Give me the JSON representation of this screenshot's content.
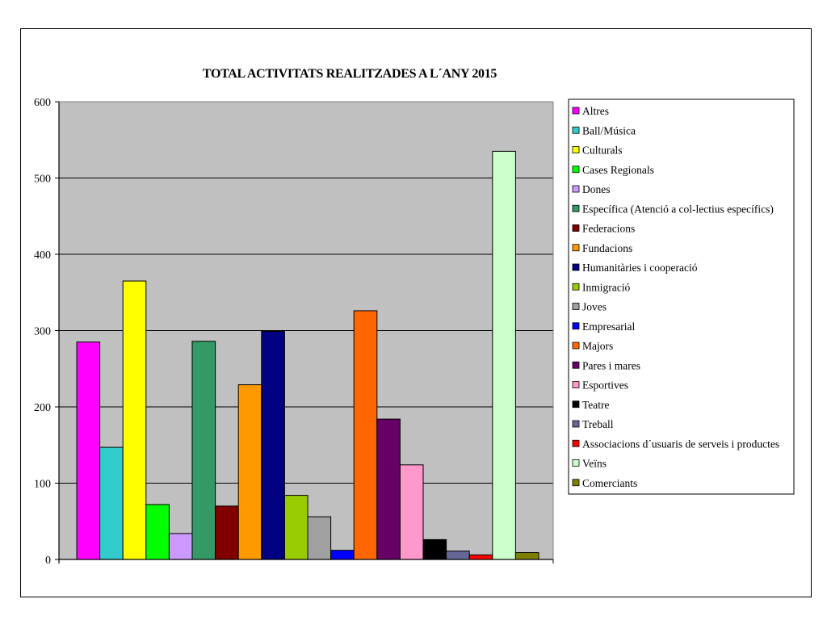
{
  "chart_data": {
    "type": "bar",
    "title": "TOTAL ACTIVITATS REALITZADES A L´ANY 2015",
    "xlabel": "",
    "ylabel": "",
    "ylim": [
      0,
      600
    ],
    "yticks": [
      0,
      100,
      200,
      300,
      400,
      500,
      600
    ],
    "grid": true,
    "legend_position": "right",
    "plot_background": "#C0C0C0",
    "series": [
      {
        "name": "Altres",
        "value": 285,
        "color": "#FF00FF"
      },
      {
        "name": "Ball/Música",
        "value": 147,
        "color": "#33CCCC"
      },
      {
        "name": "Culturals",
        "value": 365,
        "color": "#FFFF00"
      },
      {
        "name": "Cases Regionals",
        "value": 72,
        "color": "#00FF00"
      },
      {
        "name": "Dones",
        "value": 34,
        "color": "#CC99FF"
      },
      {
        "name": "Específica (Atenció a col-lectius específics)",
        "value": 286,
        "color": "#339966"
      },
      {
        "name": "Federacions",
        "value": 70,
        "color": "#800000"
      },
      {
        "name": "Fundacions",
        "value": 229,
        "color": "#FF9900"
      },
      {
        "name": "Humanitàries i cooperació",
        "value": 299,
        "color": "#000080"
      },
      {
        "name": "Inmigració",
        "value": 84,
        "color": "#99CC00"
      },
      {
        "name": "Joves",
        "value": 56,
        "color": "#A0A0A0"
      },
      {
        "name": "Empresarial",
        "value": 12,
        "color": "#0000FF"
      },
      {
        "name": "Majors",
        "value": 326,
        "color": "#FF6600"
      },
      {
        "name": "Pares i mares",
        "value": 184,
        "color": "#660066"
      },
      {
        "name": "Esportives",
        "value": 124,
        "color": "#FF99CC"
      },
      {
        "name": "Teatre",
        "value": 26,
        "color": "#000000"
      },
      {
        "name": "Treball",
        "value": 11,
        "color": "#666699"
      },
      {
        "name": "Associacions d´usuaris de serveis i productes",
        "value": 6,
        "color": "#FF0000"
      },
      {
        "name": "Veïns",
        "value": 535,
        "color": "#CCFFCC"
      },
      {
        "name": "Comerciants",
        "value": 9,
        "color": "#808000"
      }
    ]
  }
}
